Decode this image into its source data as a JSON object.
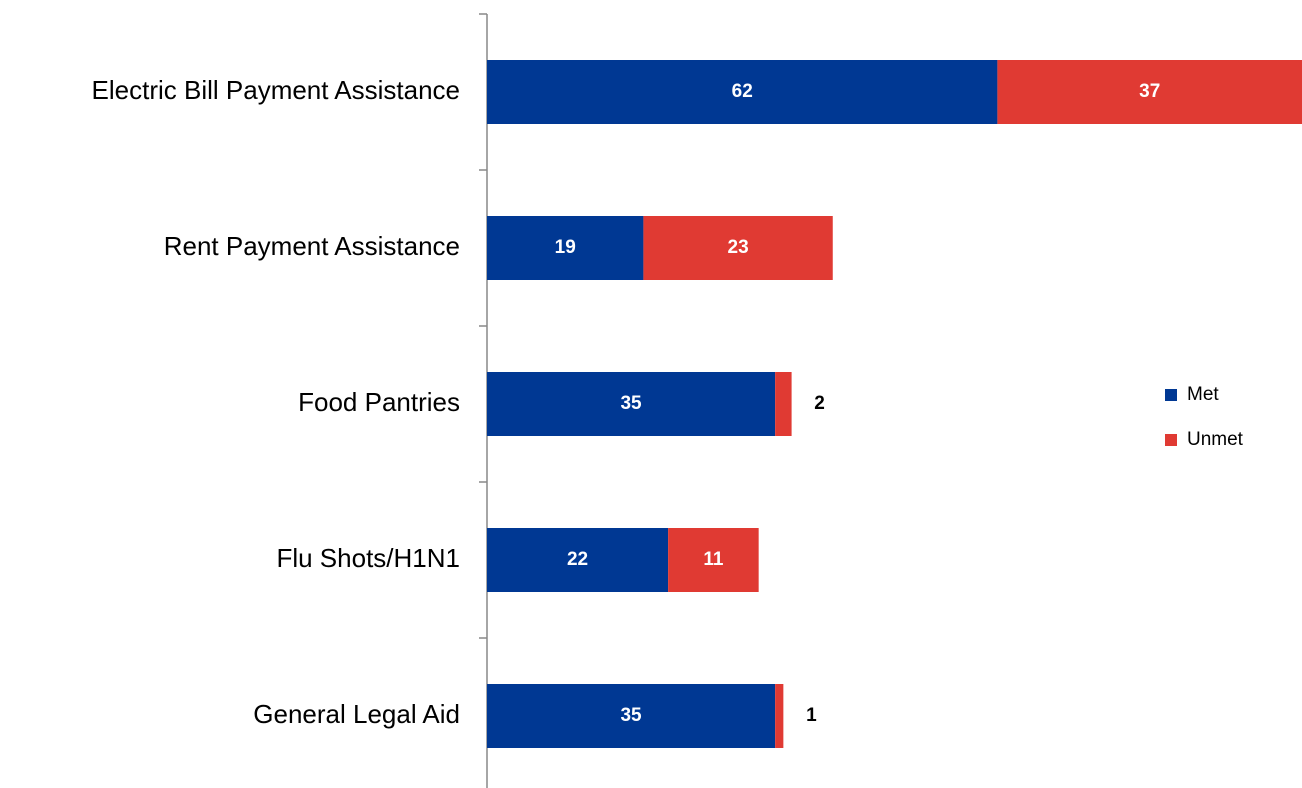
{
  "chart_data": {
    "type": "stacked_bar_horizontal",
    "categories": [
      "Electric Bill Payment Assistance",
      "Rent Payment Assistance",
      "Food Pantries",
      "Flu Shots/H1N1",
      "General Legal Aid"
    ],
    "series": [
      {
        "name": "Met",
        "color": "#003893",
        "values": [
          62,
          19,
          35,
          22,
          35
        ]
      },
      {
        "name": "Unmet",
        "color": "#e03a33",
        "values": [
          37,
          23,
          2,
          11,
          1
        ]
      }
    ],
    "legend": "right"
  }
}
